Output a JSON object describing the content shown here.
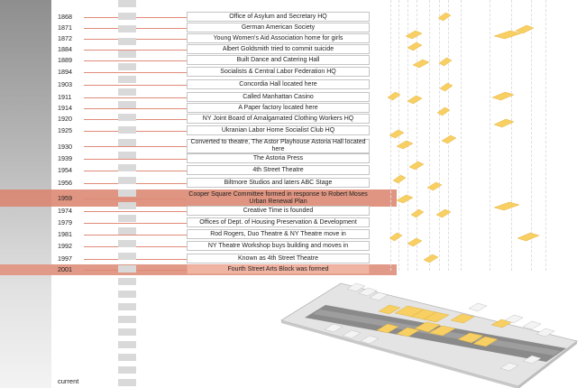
{
  "years": [
    "1868",
    "1871",
    "1872",
    "1884",
    "1889",
    "1894",
    "1903",
    "1911",
    "1914",
    "1920",
    "1925",
    "1930",
    "1939",
    "1954",
    "1956",
    "1959",
    "1974",
    "1979",
    "1981",
    "1992",
    "1997",
    "2001"
  ],
  "events": [
    "Office of Asylum and Secretary HQ",
    "German American Society",
    "Young Women's Aid Association home for girls",
    "Albert Goldsmith tried to commit suicide",
    "Built Dance and Catering Hall",
    "Socialists & Central Labor Federation HQ",
    "Concordia Hall located here",
    "Called Manhattan Casino",
    "A Paper factory located here",
    "NY Joint Board of Amalgamated Clothing Workers HQ",
    "Ukranian Labor Home Socialist Club HQ",
    "Converted to theatre, The Astor Playhouse Astoria Hall located here",
    "The Astoria Press",
    "4th Street Theatre",
    "Biltmore Studios and laters ABC Stage",
    "Cooper Square Committee formed in response to Robert Moses Urban Renewal Plan",
    "Creative Time is founded",
    "Offices of Dept. of Housing Preservation & Development",
    "Rod Rogers, Duo Theatre & NY Theatre move in",
    "NY Theatre Workshop buys building and moves in",
    "Known as 4th Street Theatre",
    "Fourth Street Arts Block was formed"
  ],
  "current_label": "current",
  "colors": {
    "highlight_band": "#d9826b",
    "highlight_band_light": "#e19a87",
    "building": "#f7cf62",
    "connector": "#e08a78"
  }
}
